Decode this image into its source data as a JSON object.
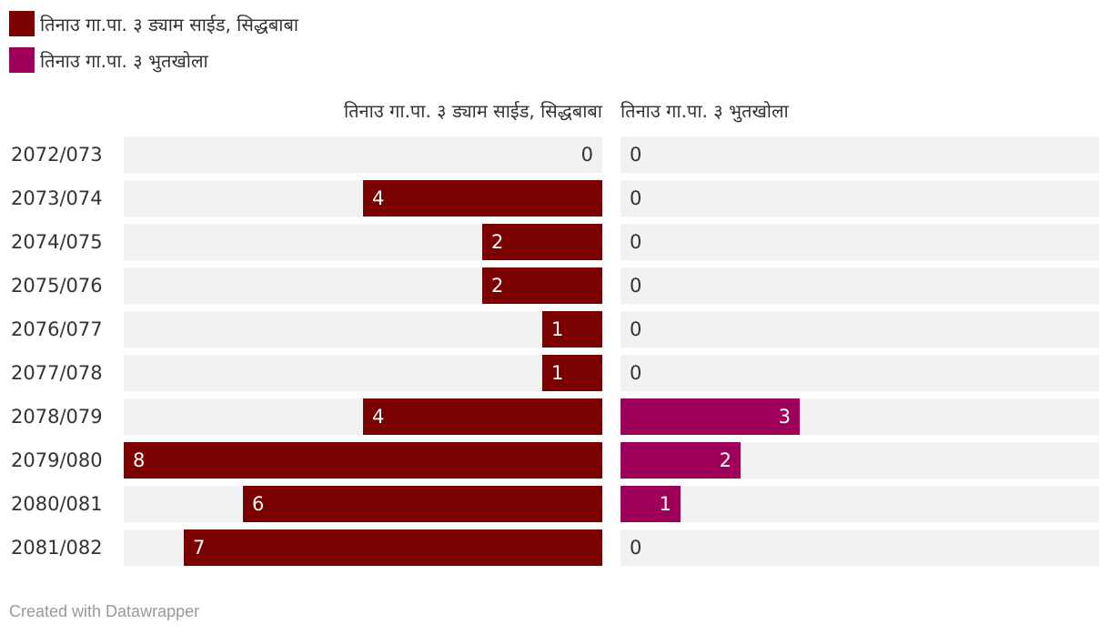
{
  "chart_data": {
    "type": "bar",
    "title": "",
    "categories": [
      "2072/073",
      "2073/074",
      "2074/075",
      "2075/076",
      "2076/077",
      "2077/078",
      "2078/079",
      "2079/080",
      "2080/081",
      "2081/082"
    ],
    "series": [
      {
        "name": "तिनाउ गा.पा. ३ ड्याम साईड, सिद्धबाबा",
        "color": "#7b0000",
        "values": [
          0,
          4,
          2,
          2,
          1,
          1,
          4,
          8,
          6,
          7
        ]
      },
      {
        "name": "तिनाउ गा.पा. ३ भुतखोला",
        "color": "#9e0059",
        "values": [
          0,
          0,
          0,
          0,
          0,
          0,
          3,
          2,
          1,
          0
        ]
      }
    ],
    "xlim": [
      0,
      8
    ],
    "legend": "top-left",
    "value_labels": true
  },
  "footer": {
    "text": "Created with Datawrapper"
  },
  "colors": {
    "track": "#f2f2f2",
    "bar_text": "#ffffff",
    "text": "#333333"
  }
}
